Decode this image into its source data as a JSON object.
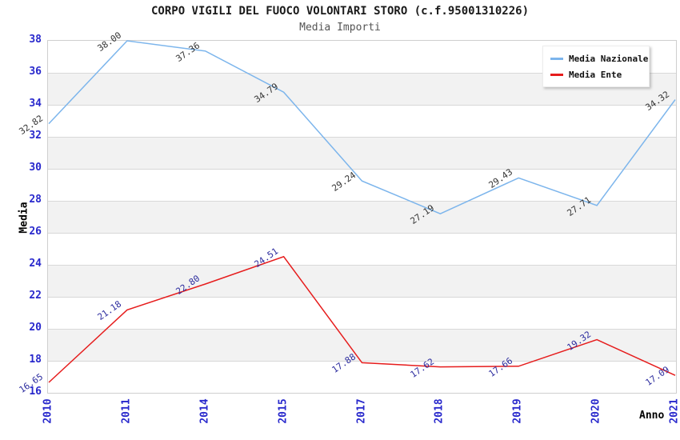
{
  "title": "CORPO VIGILI DEL FUOCO VOLONTARI STORO (c.f.95001310226)",
  "subtitle": "Media Importi",
  "axes": {
    "x_label": "Anno",
    "y_label": "Media",
    "tick_color": "#2828cc"
  },
  "colors": {
    "band": "#f2f2f2",
    "gridline": "#d8d8d8",
    "plot_border": "#cfcfcf"
  },
  "chart_data": {
    "type": "line",
    "x": [
      "2010",
      "2011",
      "2014",
      "2015",
      "2017",
      "2018",
      "2019",
      "2020",
      "2021"
    ],
    "series": [
      {
        "name": "Media Nazionale",
        "color": "#7cb5ec",
        "label_color": "#333333",
        "values": [
          32.82,
          38.0,
          37.36,
          34.79,
          29.24,
          27.19,
          29.43,
          27.71,
          34.32
        ]
      },
      {
        "name": "Media Ente",
        "color": "#e61c1c",
        "label_color": "#2b2b9e",
        "values": [
          16.65,
          21.18,
          22.8,
          24.51,
          17.88,
          17.62,
          17.66,
          19.32,
          17.09
        ]
      }
    ],
    "title": "CORPO VIGILI DEL FUOCO VOLONTARI STORO (c.f.95001310226)",
    "subtitle": "Media Importi",
    "xlabel": "Anno",
    "ylabel": "Media",
    "ylim": [
      16,
      38
    ],
    "ytick_step": 2,
    "grid": true,
    "alternating_bands": true,
    "legend_position": "top-right",
    "data_labels": true,
    "data_label_decimals": 2
  }
}
